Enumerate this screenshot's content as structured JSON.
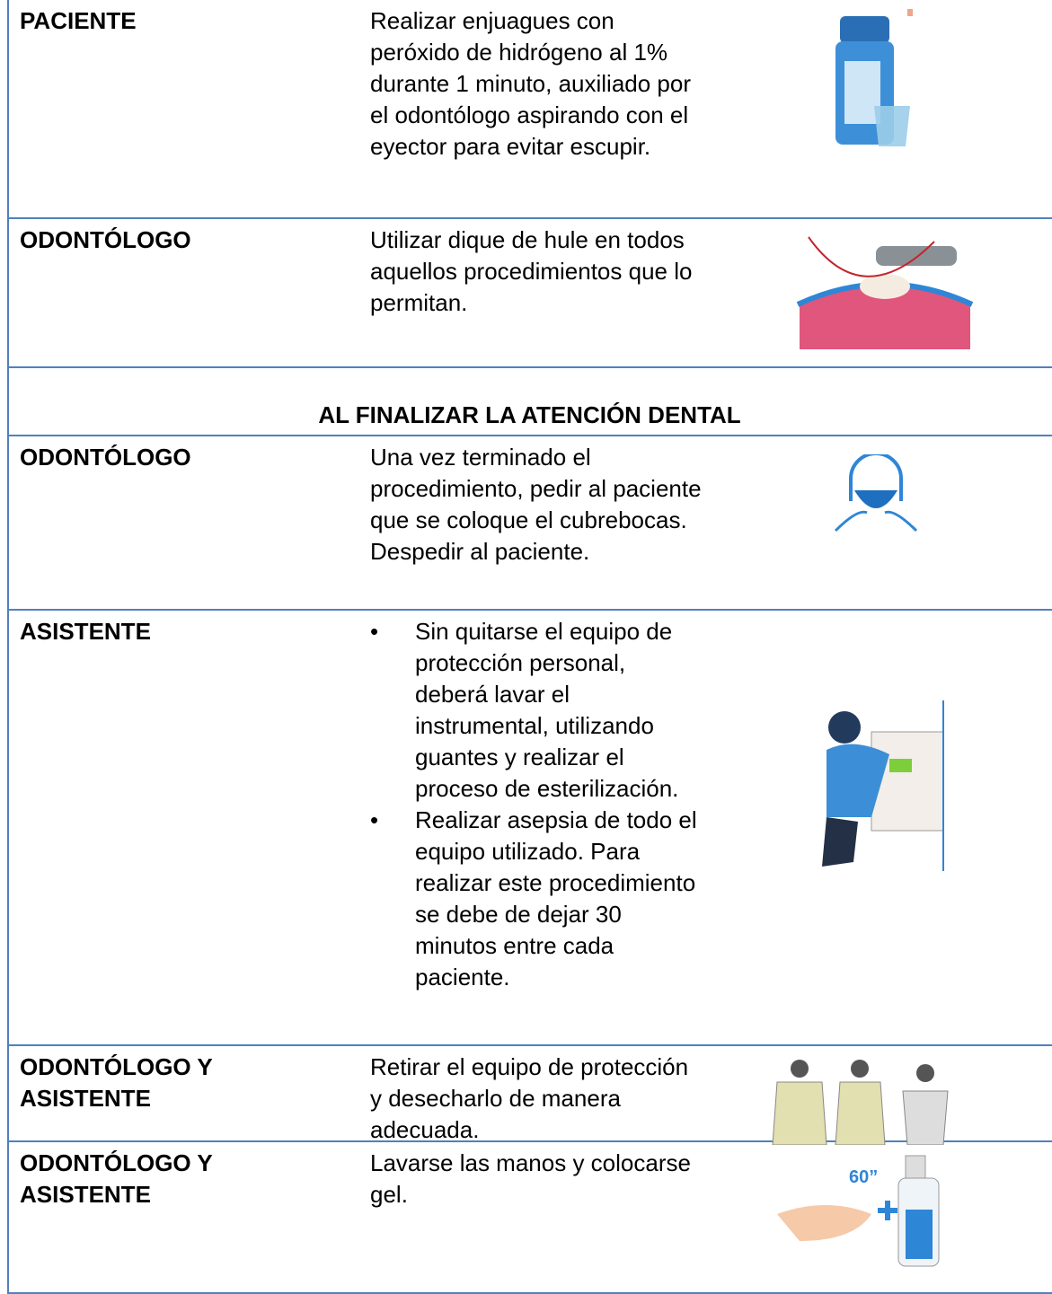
{
  "table": {
    "rows": [
      {
        "role": "PACIENTE",
        "text": [
          "Realizar enjuagues con peróxido de hidrógeno al 1% durante 1 minuto, auxiliado por el odontólogo aspirando con el eyector para evitar escupir."
        ]
      },
      {
        "role": "ODONTÓLOGO",
        "text": [
          "Utilizar dique de hule en todos aquellos procedimientos que lo permitan."
        ]
      },
      {
        "section": "AL FINALIZAR LA ATENCIÓN DENTAL"
      },
      {
        "role": "ODONTÓLOGO",
        "text": [
          "Una vez terminado el procedimiento, pedir al paciente que se coloque el cubrebocas.",
          "Despedir al paciente."
        ]
      },
      {
        "role": "ASISTENTE",
        "bullets": [
          "Sin quitarse el equipo de protección personal, deberá lavar el instrumental, utilizando guantes y realizar el proceso de esterilización.",
          "Realizar asepsia de todo el equipo utilizado. Para realizar este procedimiento se debe de dejar 30 minutos entre cada paciente."
        ]
      },
      {
        "role": "ODONTÓLOGO Y ASISTENTE",
        "text": [
          "Retirar el equipo de protección y desecharlo de manera adecuada."
        ]
      },
      {
        "role": "ODONTÓLOGO Y ASISTENTE",
        "text": [
          "Lavarse las manos y colocarse gel."
        ]
      }
    ]
  }
}
